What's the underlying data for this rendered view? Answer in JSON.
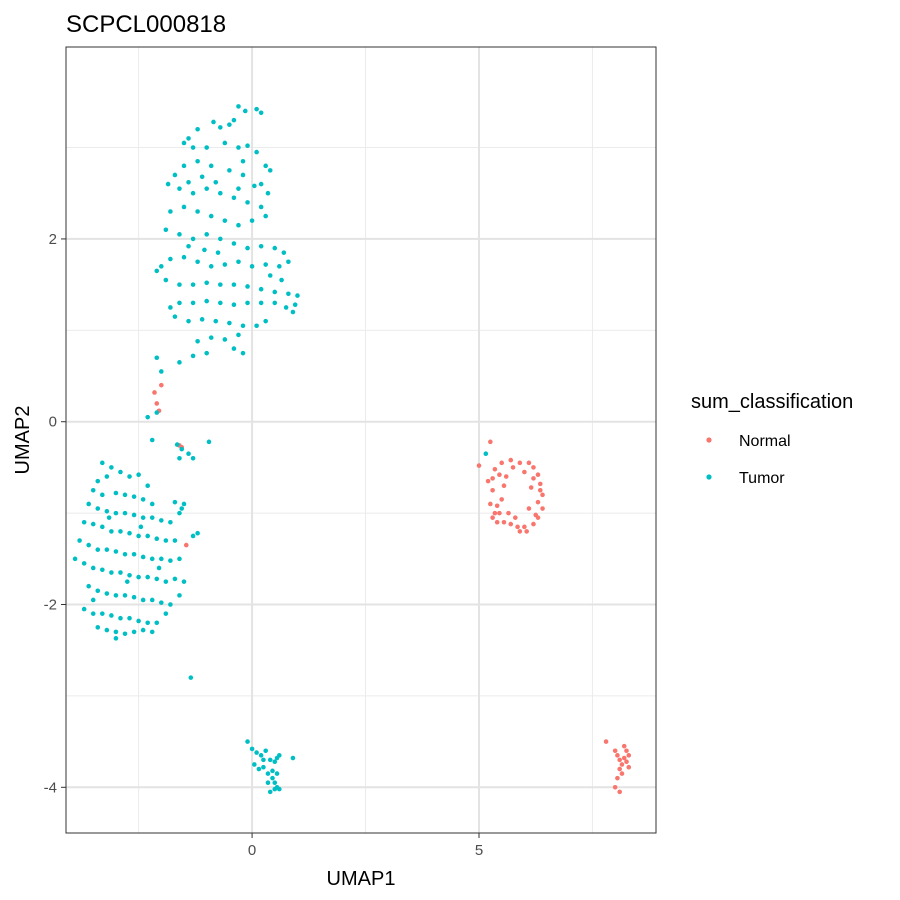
{
  "chart_data": {
    "type": "scatter",
    "title": "SCPCL000818",
    "xlabel": "UMAP1",
    "ylabel": "UMAP2",
    "xlim": [
      -4.1,
      8.9
    ],
    "ylim": [
      -4.5,
      4.1
    ],
    "x_ticks": [
      0,
      5
    ],
    "x_tick_labels": [
      "0",
      "5"
    ],
    "y_ticks": [
      -4,
      -2,
      0,
      2
    ],
    "y_tick_labels": [
      "-4",
      "-2",
      "0",
      "2"
    ],
    "grid": true,
    "legend": {
      "title": "sum_classification",
      "position": "right"
    },
    "series": [
      {
        "name": "Normal",
        "color": "#F8766D",
        "points": [
          [
            -2.0,
            0.4
          ],
          [
            -2.1,
            0.2
          ],
          [
            -2.15,
            0.32
          ],
          [
            -2.05,
            0.12
          ],
          [
            -1.55,
            -0.28
          ],
          [
            -1.6,
            -0.26
          ],
          [
            -1.45,
            -1.35
          ],
          [
            5.0,
            -0.48
          ],
          [
            5.25,
            -0.22
          ],
          [
            5.35,
            -0.52
          ],
          [
            5.5,
            -0.45
          ],
          [
            5.7,
            -0.42
          ],
          [
            5.9,
            -0.45
          ],
          [
            6.1,
            -0.45
          ],
          [
            6.2,
            -0.5
          ],
          [
            5.2,
            -0.65
          ],
          [
            5.3,
            -0.75
          ],
          [
            5.25,
            -0.9
          ],
          [
            5.3,
            -1.05
          ],
          [
            5.35,
            -1.0
          ],
          [
            5.4,
            -1.1
          ],
          [
            5.55,
            -1.1
          ],
          [
            5.7,
            -1.12
          ],
          [
            5.85,
            -1.15
          ],
          [
            6.0,
            -1.15
          ],
          [
            6.2,
            -1.12
          ],
          [
            6.3,
            -1.05
          ],
          [
            6.4,
            -0.95
          ],
          [
            6.4,
            -0.8
          ],
          [
            6.35,
            -0.68
          ],
          [
            6.3,
            -0.58
          ],
          [
            5.45,
            -0.58
          ],
          [
            5.6,
            -0.6
          ],
          [
            5.5,
            -0.85
          ],
          [
            5.55,
            -0.7
          ],
          [
            6.15,
            -0.72
          ],
          [
            6.1,
            -0.95
          ],
          [
            5.8,
            -1.05
          ],
          [
            5.65,
            -1.0
          ],
          [
            5.4,
            -0.92
          ],
          [
            6.25,
            -1.02
          ],
          [
            6.0,
            -0.55
          ],
          [
            5.75,
            -0.5
          ],
          [
            6.3,
            -0.88
          ],
          [
            5.3,
            -0.62
          ],
          [
            5.45,
            -1.0
          ],
          [
            6.05,
            -1.2
          ],
          [
            6.2,
            -0.62
          ],
          [
            5.9,
            -1.2
          ],
          [
            6.35,
            -0.75
          ],
          [
            7.8,
            -3.5
          ],
          [
            8.0,
            -3.6
          ],
          [
            8.05,
            -3.65
          ],
          [
            8.1,
            -3.7
          ],
          [
            8.15,
            -3.75
          ],
          [
            8.2,
            -3.68
          ],
          [
            8.25,
            -3.72
          ],
          [
            8.3,
            -3.65
          ],
          [
            8.1,
            -3.8
          ],
          [
            8.05,
            -3.9
          ],
          [
            8.0,
            -4.0
          ],
          [
            8.2,
            -3.55
          ],
          [
            8.15,
            -3.85
          ],
          [
            8.25,
            -3.6
          ],
          [
            8.1,
            -4.05
          ],
          [
            8.3,
            -3.78
          ]
        ]
      },
      {
        "name": "Tumor",
        "color": "#00BFC4",
        "points": [
          [
            -0.3,
            3.45
          ],
          [
            -0.15,
            3.4
          ],
          [
            0.1,
            3.42
          ],
          [
            0.2,
            3.38
          ],
          [
            -0.4,
            3.3
          ],
          [
            -0.5,
            3.25
          ],
          [
            -0.7,
            3.22
          ],
          [
            -0.85,
            3.28
          ],
          [
            -1.2,
            3.2
          ],
          [
            -1.4,
            3.1
          ],
          [
            -1.5,
            3.05
          ],
          [
            -1.3,
            3.0
          ],
          [
            -1.0,
            3.0
          ],
          [
            -0.6,
            3.05
          ],
          [
            -0.3,
            3.0
          ],
          [
            -0.1,
            3.02
          ],
          [
            0.1,
            2.95
          ],
          [
            0.3,
            2.8
          ],
          [
            0.4,
            2.75
          ],
          [
            0.2,
            2.6
          ],
          [
            -0.2,
            2.7
          ],
          [
            -0.5,
            2.75
          ],
          [
            -0.9,
            2.8
          ],
          [
            -1.2,
            2.85
          ],
          [
            -1.5,
            2.8
          ],
          [
            -1.7,
            2.7
          ],
          [
            -1.85,
            2.6
          ],
          [
            -1.6,
            2.55
          ],
          [
            -1.3,
            2.5
          ],
          [
            -1.0,
            2.55
          ],
          [
            -0.7,
            2.5
          ],
          [
            -0.4,
            2.45
          ],
          [
            -0.1,
            2.4
          ],
          [
            0.2,
            2.35
          ],
          [
            0.3,
            2.25
          ],
          [
            0.0,
            2.2
          ],
          [
            -0.3,
            2.15
          ],
          [
            -0.6,
            2.2
          ],
          [
            -0.9,
            2.25
          ],
          [
            -1.2,
            2.3
          ],
          [
            -1.5,
            2.35
          ],
          [
            -1.8,
            2.3
          ],
          [
            -1.9,
            2.1
          ],
          [
            -1.6,
            2.05
          ],
          [
            -1.3,
            2.0
          ],
          [
            -1.0,
            2.05
          ],
          [
            -0.7,
            2.0
          ],
          [
            -0.4,
            1.95
          ],
          [
            -0.1,
            1.9
          ],
          [
            0.2,
            1.92
          ],
          [
            0.5,
            1.9
          ],
          [
            0.7,
            1.85
          ],
          [
            0.8,
            1.75
          ],
          [
            0.6,
            1.7
          ],
          [
            0.3,
            1.72
          ],
          [
            0.0,
            1.7
          ],
          [
            -0.3,
            1.75
          ],
          [
            -0.6,
            1.72
          ],
          [
            -0.9,
            1.7
          ],
          [
            -1.2,
            1.75
          ],
          [
            -1.5,
            1.8
          ],
          [
            -1.8,
            1.78
          ],
          [
            -2.0,
            1.7
          ],
          [
            -2.1,
            1.65
          ],
          [
            -1.9,
            1.55
          ],
          [
            -1.6,
            1.5
          ],
          [
            -1.3,
            1.5
          ],
          [
            -1.0,
            1.52
          ],
          [
            -0.7,
            1.5
          ],
          [
            -0.4,
            1.5
          ],
          [
            -0.1,
            1.48
          ],
          [
            0.2,
            1.45
          ],
          [
            0.5,
            1.42
          ],
          [
            0.8,
            1.4
          ],
          [
            1.0,
            1.38
          ],
          [
            0.95,
            1.28
          ],
          [
            0.9,
            1.2
          ],
          [
            0.75,
            1.25
          ],
          [
            0.5,
            1.3
          ],
          [
            0.2,
            1.3
          ],
          [
            -0.1,
            1.3
          ],
          [
            -0.4,
            1.28
          ],
          [
            -0.7,
            1.3
          ],
          [
            -1.0,
            1.32
          ],
          [
            -1.3,
            1.3
          ],
          [
            -1.6,
            1.3
          ],
          [
            -1.8,
            1.25
          ],
          [
            -1.7,
            1.15
          ],
          [
            -1.4,
            1.1
          ],
          [
            -1.1,
            1.12
          ],
          [
            -0.8,
            1.1
          ],
          [
            -0.5,
            1.08
          ],
          [
            -0.2,
            1.05
          ],
          [
            0.1,
            1.05
          ],
          [
            0.3,
            1.1
          ],
          [
            -0.3,
            0.95
          ],
          [
            -0.6,
            0.9
          ],
          [
            -0.9,
            0.92
          ],
          [
            -1.2,
            0.88
          ],
          [
            -0.4,
            0.8
          ],
          [
            -0.2,
            0.75
          ],
          [
            -1.0,
            0.75
          ],
          [
            -1.3,
            0.72
          ],
          [
            -1.6,
            0.65
          ],
          [
            -0.3,
            2.55
          ],
          [
            0.05,
            2.58
          ],
          [
            -0.8,
            2.62
          ],
          [
            -1.1,
            2.68
          ],
          [
            -1.4,
            2.62
          ],
          [
            -0.2,
            2.85
          ],
          [
            0.35,
            2.5
          ],
          [
            -0.75,
            1.85
          ],
          [
            -1.05,
            1.88
          ],
          [
            -1.4,
            1.92
          ],
          [
            0.4,
            1.6
          ],
          [
            0.65,
            1.55
          ],
          [
            -2.1,
            0.7
          ],
          [
            -2.0,
            0.55
          ],
          [
            -2.3,
            0.05
          ],
          [
            -2.1,
            0.1
          ],
          [
            -2.2,
            -0.2
          ],
          [
            -1.65,
            -0.25
          ],
          [
            -1.55,
            -0.3
          ],
          [
            -1.4,
            -0.35
          ],
          [
            -1.3,
            -0.4
          ],
          [
            -1.6,
            -0.4
          ],
          [
            -0.95,
            -0.22
          ],
          [
            -3.3,
            -0.45
          ],
          [
            -3.1,
            -0.5
          ],
          [
            -2.9,
            -0.55
          ],
          [
            -2.7,
            -0.6
          ],
          [
            -2.5,
            -0.58
          ],
          [
            -2.3,
            -0.7
          ],
          [
            -3.2,
            -0.6
          ],
          [
            -3.4,
            -0.65
          ],
          [
            -3.5,
            -0.75
          ],
          [
            -3.3,
            -0.8
          ],
          [
            -3.0,
            -0.78
          ],
          [
            -2.8,
            -0.8
          ],
          [
            -2.6,
            -0.82
          ],
          [
            -2.4,
            -0.85
          ],
          [
            -2.2,
            -0.9
          ],
          [
            -3.6,
            -0.9
          ],
          [
            -3.4,
            -0.95
          ],
          [
            -3.2,
            -0.98
          ],
          [
            -3.0,
            -1.0
          ],
          [
            -2.8,
            -1.0
          ],
          [
            -2.6,
            -1.02
          ],
          [
            -2.4,
            -1.05
          ],
          [
            -2.2,
            -1.05
          ],
          [
            -2.0,
            -1.08
          ],
          [
            -1.8,
            -1.1
          ],
          [
            -1.6,
            -1.0
          ],
          [
            -1.5,
            -0.9
          ],
          [
            -1.7,
            -0.88
          ],
          [
            -3.7,
            -1.1
          ],
          [
            -3.5,
            -1.12
          ],
          [
            -3.3,
            -1.15
          ],
          [
            -3.1,
            -1.2
          ],
          [
            -2.9,
            -1.2
          ],
          [
            -2.7,
            -1.22
          ],
          [
            -2.5,
            -1.25
          ],
          [
            -2.3,
            -1.25
          ],
          [
            -2.1,
            -1.28
          ],
          [
            -1.9,
            -1.3
          ],
          [
            -1.7,
            -1.3
          ],
          [
            -1.3,
            -1.25
          ],
          [
            -1.2,
            -1.22
          ],
          [
            -3.8,
            -1.3
          ],
          [
            -3.6,
            -1.35
          ],
          [
            -3.4,
            -1.4
          ],
          [
            -3.2,
            -1.4
          ],
          [
            -3.0,
            -1.42
          ],
          [
            -2.8,
            -1.45
          ],
          [
            -2.6,
            -1.45
          ],
          [
            -2.4,
            -1.48
          ],
          [
            -2.2,
            -1.5
          ],
          [
            -2.0,
            -1.5
          ],
          [
            -1.8,
            -1.52
          ],
          [
            -1.6,
            -1.5
          ],
          [
            -3.9,
            -1.5
          ],
          [
            -3.7,
            -1.55
          ],
          [
            -3.5,
            -1.6
          ],
          [
            -3.3,
            -1.62
          ],
          [
            -3.1,
            -1.65
          ],
          [
            -2.9,
            -1.65
          ],
          [
            -2.7,
            -1.68
          ],
          [
            -2.5,
            -1.7
          ],
          [
            -2.3,
            -1.7
          ],
          [
            -2.1,
            -1.72
          ],
          [
            -1.9,
            -1.75
          ],
          [
            -1.7,
            -1.72
          ],
          [
            -1.5,
            -1.75
          ],
          [
            -3.6,
            -1.8
          ],
          [
            -3.4,
            -1.85
          ],
          [
            -3.2,
            -1.88
          ],
          [
            -3.0,
            -1.9
          ],
          [
            -2.8,
            -1.9
          ],
          [
            -2.6,
            -1.92
          ],
          [
            -2.4,
            -1.95
          ],
          [
            -2.2,
            -1.95
          ],
          [
            -2.0,
            -1.98
          ],
          [
            -1.8,
            -2.0
          ],
          [
            -1.6,
            -1.9
          ],
          [
            -3.7,
            -2.05
          ],
          [
            -3.5,
            -2.1
          ],
          [
            -3.3,
            -2.1
          ],
          [
            -3.1,
            -2.12
          ],
          [
            -2.9,
            -2.15
          ],
          [
            -2.7,
            -2.15
          ],
          [
            -2.5,
            -2.18
          ],
          [
            -2.3,
            -2.2
          ],
          [
            -2.1,
            -2.2
          ],
          [
            -1.9,
            -2.1
          ],
          [
            -3.4,
            -2.25
          ],
          [
            -3.2,
            -2.28
          ],
          [
            -3.0,
            -2.3
          ],
          [
            -2.8,
            -2.32
          ],
          [
            -2.6,
            -2.3
          ],
          [
            -2.4,
            -2.28
          ],
          [
            -2.2,
            -2.3
          ],
          [
            -3.0,
            -2.37
          ],
          [
            -3.5,
            -1.95
          ],
          [
            -2.05,
            -1.6
          ],
          [
            -3.15,
            -1.05
          ],
          [
            -2.45,
            -1.15
          ],
          [
            -1.55,
            -0.95
          ],
          [
            -2.75,
            -1.75
          ],
          [
            -1.35,
            -2.8
          ],
          [
            -0.1,
            -3.5
          ],
          [
            0.0,
            -3.58
          ],
          [
            0.1,
            -3.62
          ],
          [
            0.2,
            -3.65
          ],
          [
            0.3,
            -3.6
          ],
          [
            0.4,
            -3.7
          ],
          [
            0.5,
            -3.72
          ],
          [
            0.55,
            -3.68
          ],
          [
            0.6,
            -3.65
          ],
          [
            0.9,
            -3.68
          ],
          [
            0.05,
            -3.75
          ],
          [
            0.15,
            -3.8
          ],
          [
            0.25,
            -3.78
          ],
          [
            0.35,
            -3.85
          ],
          [
            0.45,
            -3.9
          ],
          [
            0.5,
            -3.95
          ],
          [
            0.55,
            -4.0
          ],
          [
            0.6,
            -4.02
          ],
          [
            0.4,
            -4.05
          ],
          [
            0.5,
            -4.02
          ],
          [
            0.35,
            -3.95
          ],
          [
            0.45,
            -3.82
          ],
          [
            0.25,
            -3.7
          ],
          [
            0.55,
            -3.85
          ],
          [
            5.15,
            -0.35
          ]
        ]
      }
    ]
  }
}
